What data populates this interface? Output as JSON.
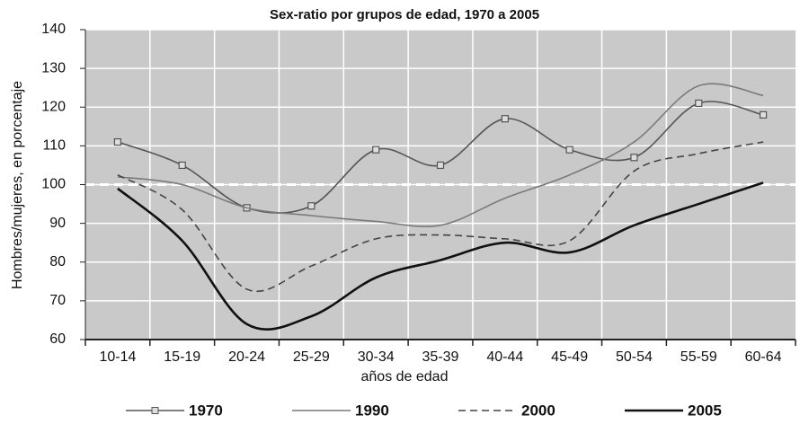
{
  "chart_data": {
    "type": "line",
    "title": "Sex-ratio por grupos de edad, 1970 a 2005",
    "x_label": "años de edad",
    "y_label": "Hombres/mujeres, en porcentaje",
    "categories": [
      "10-14",
      "15-19",
      "20-24",
      "25-29",
      "30-34",
      "35-39",
      "40-44",
      "45-49",
      "50-54",
      "55-59",
      "60-64"
    ],
    "series": [
      {
        "name": "1970",
        "color": "#555555",
        "dash": "solid",
        "marker": "square",
        "values": [
          111,
          105,
          94,
          94.5,
          109,
          105,
          117,
          109,
          107,
          121,
          118
        ]
      },
      {
        "name": "1990",
        "color": "#7a7a7a",
        "dash": "solid",
        "values": [
          102,
          100,
          94,
          92,
          90.5,
          89.5,
          96.5,
          102.5,
          111,
          125.5,
          123
        ]
      },
      {
        "name": "2000",
        "color": "#444444",
        "dash": "dashed",
        "values": [
          102.5,
          93.5,
          73,
          79,
          86,
          87,
          86,
          85.5,
          103.5,
          108,
          111
        ]
      },
      {
        "name": "2005",
        "color": "#111111",
        "dash": "solid",
        "values": [
          99,
          85.5,
          64,
          66,
          76,
          80.5,
          85,
          82.5,
          89.5,
          95,
          100.5
        ]
      }
    ],
    "reference_line": 100,
    "ylim": [
      60,
      140
    ],
    "yticks": [
      60,
      70,
      80,
      90,
      100,
      110,
      120,
      130,
      140
    ],
    "grid": true,
    "legend": "bottom"
  }
}
